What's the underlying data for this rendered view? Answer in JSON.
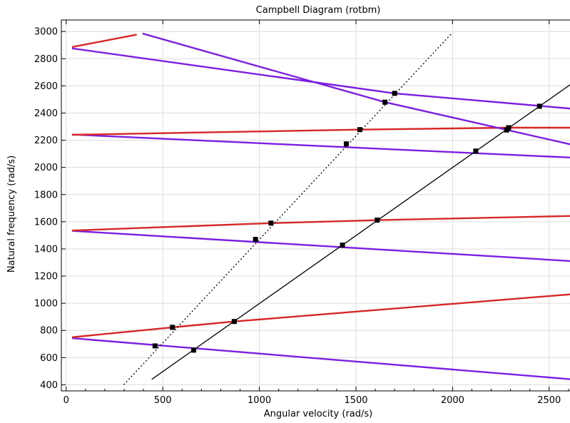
{
  "chart_data": {
    "type": "line",
    "title": "Campbell Diagram (rotbm)",
    "xlabel": "Angular velocity (rad/s)",
    "ylabel": "Natural frequency (rad/s)",
    "xlim": [
      -25,
      2630
    ],
    "ylim": [
      355,
      3085
    ],
    "xticks": [
      0,
      500,
      1000,
      1500,
      2000,
      2500
    ],
    "yticks": [
      400,
      600,
      800,
      1000,
      1200,
      1400,
      1600,
      1800,
      2000,
      2200,
      2400,
      2600,
      2800,
      3000
    ],
    "grid": true,
    "colors": {
      "forward": "#d62728",
      "backward": "#7b1fe0",
      "reference": "#000000",
      "marker": "#000000"
    },
    "series": [
      {
        "kind": "backward",
        "x": [
          30,
          2620
        ],
        "y": [
          743,
          440
        ]
      },
      {
        "kind": "forward",
        "x": [
          30,
          550,
          870,
          2620
        ],
        "y": [
          750,
          823,
          866,
          1067
        ]
      },
      {
        "kind": "backward",
        "x": [
          30,
          2620
        ],
        "y": [
          1533,
          1310
        ]
      },
      {
        "kind": "forward",
        "x": [
          30,
          1060,
          1610,
          2620
        ],
        "y": [
          1535,
          1590,
          1612,
          1643
        ]
      },
      {
        "kind": "backward",
        "x": [
          30,
          2620
        ],
        "y": [
          2242,
          2072
        ]
      },
      {
        "kind": "forward",
        "x": [
          30,
          1520,
          2290,
          2620
        ],
        "y": [
          2240,
          2278,
          2292,
          2292
        ]
      },
      {
        "kind": "backward",
        "x": [
          30,
          1700,
          2620
        ],
        "y": [
          2876,
          2545,
          2432
        ]
      },
      {
        "kind": "forward",
        "x": [
          30,
          365
        ],
        "y": [
          2886,
          2977
        ]
      },
      {
        "kind": "backward",
        "x": [
          395,
          1650,
          2620
        ],
        "y": [
          2985,
          2480,
          2166
        ]
      },
      {
        "kind": "reference-dotted",
        "x": [
          298,
          1995
        ],
        "y": [
          400,
          2985
        ]
      },
      {
        "kind": "reference-solid",
        "x": [
          443,
          2620
        ],
        "y": [
          440,
          2620
        ]
      }
    ],
    "markers": {
      "x": [
        460,
        550,
        660,
        870,
        980,
        1060,
        1430,
        1450,
        1520,
        1610,
        1650,
        1700,
        2120,
        2280,
        2290,
        2450
      ],
      "y": [
        686,
        823,
        655,
        866,
        1470,
        1590,
        1428,
        2173,
        2278,
        1612,
        2480,
        2545,
        2120,
        2275,
        2292,
        2450
      ]
    }
  }
}
